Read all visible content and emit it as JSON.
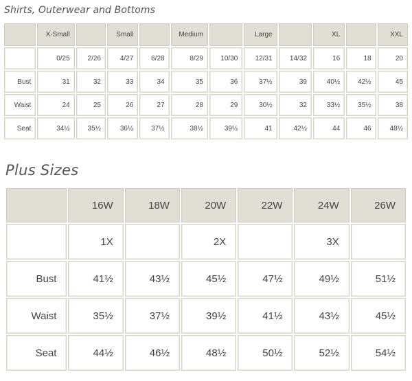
{
  "table1": {
    "title": "Shirts, Outerwear and Bottoms",
    "header": [
      "",
      "X-Small",
      "",
      "Small",
      "",
      "Medium",
      "",
      "Large",
      "",
      "XL",
      "",
      "XXL"
    ],
    "rows": [
      [
        "",
        "0/25",
        "2/26",
        "4/27",
        "6/28",
        "8/29",
        "10/30",
        "12/31",
        "14/32",
        "16",
        "18",
        "20"
      ],
      [
        "Bust",
        "31",
        "32",
        "33",
        "34",
        "35",
        "36",
        "37½",
        "39",
        "40½",
        "42½",
        "45"
      ],
      [
        "Waist",
        "24",
        "25",
        "26",
        "27",
        "28",
        "29",
        "30½",
        "32",
        "33½",
        "35½",
        "38"
      ],
      [
        "Seat",
        "34½",
        "35½",
        "36½",
        "37½",
        "38½",
        "39½",
        "41",
        "42½",
        "44",
        "46",
        "48½"
      ]
    ]
  },
  "table2": {
    "title": "Plus Sizes",
    "header": [
      "",
      "16W",
      "18W",
      "20W",
      "22W",
      "24W",
      "26W"
    ],
    "rows": [
      [
        "",
        "1X",
        "",
        "2X",
        "",
        "3X",
        ""
      ],
      [
        "Bust",
        "41½",
        "43½",
        "45½",
        "47½",
        "49½",
        "51½"
      ],
      [
        "Waist",
        "35½",
        "37½",
        "39½",
        "41½",
        "43½",
        "45½"
      ],
      [
        "Seat",
        "44½",
        "46½",
        "48½",
        "50½",
        "52½",
        "54½"
      ]
    ]
  }
}
